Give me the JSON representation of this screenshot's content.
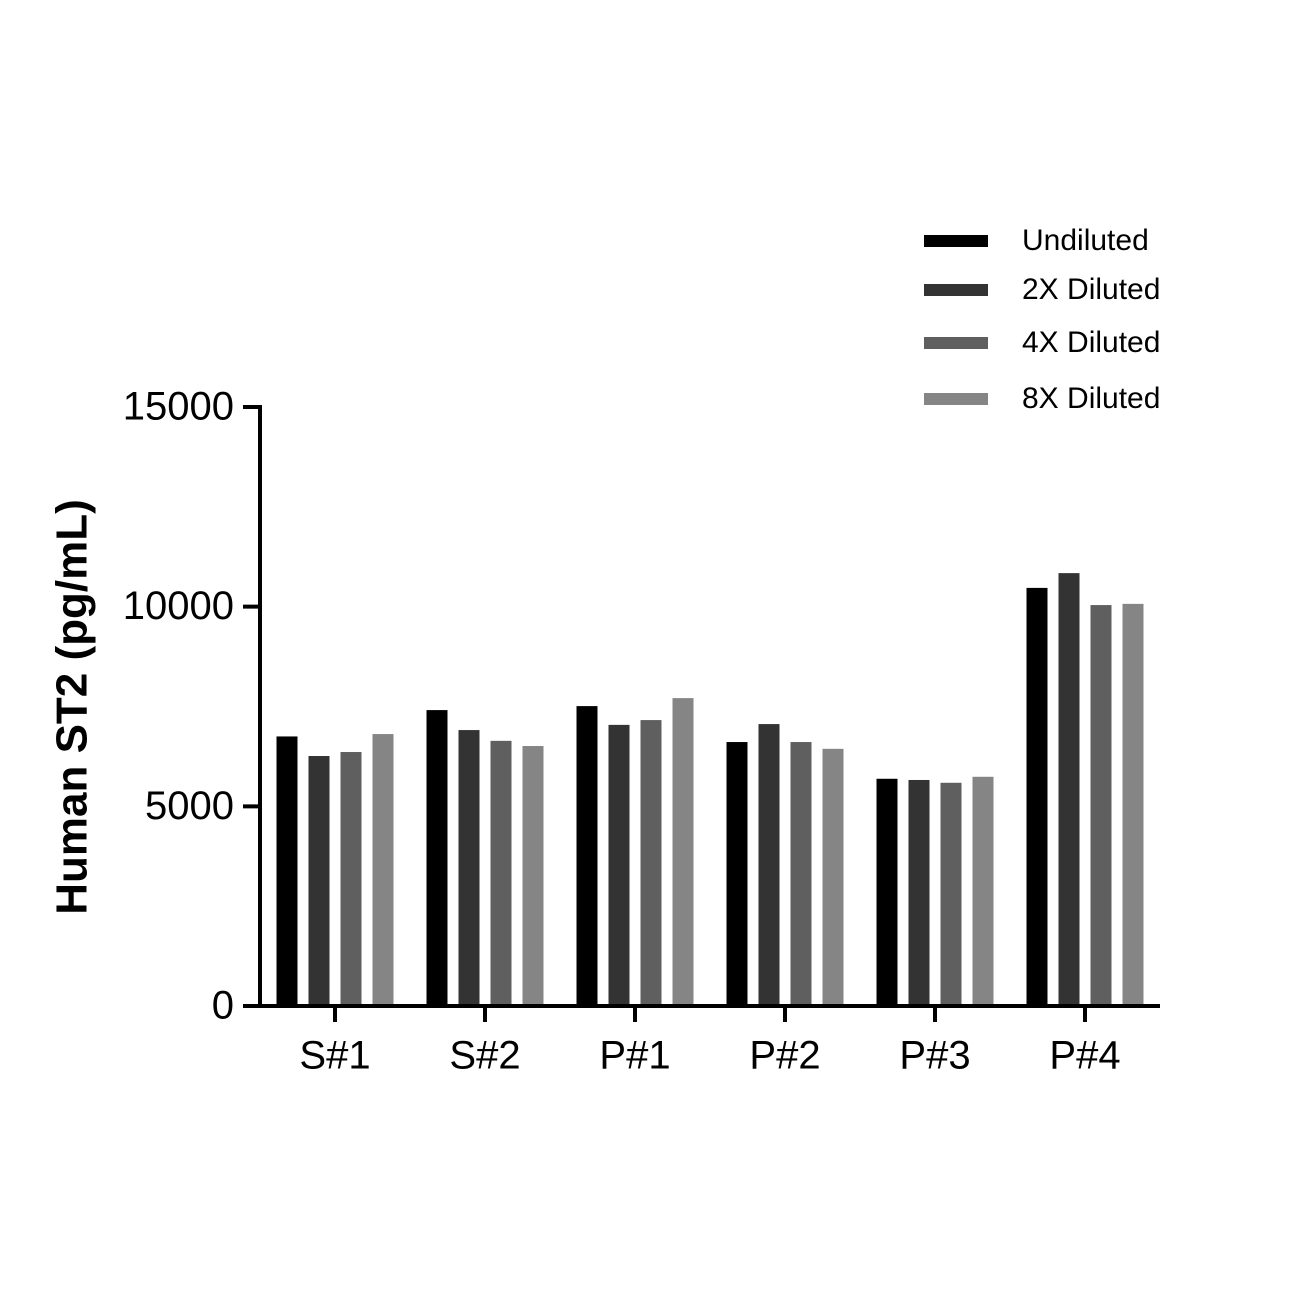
{
  "chart_data": {
    "type": "bar",
    "y_label": "Human ST2 (pg/mL)",
    "categories": [
      "S#1",
      "S#2",
      "P#1",
      "P#2",
      "P#3",
      "P#4"
    ],
    "series": [
      {
        "name": "Undiluted",
        "color": "#000000",
        "values": [
          6750,
          7410,
          7510,
          6610,
          5690,
          10470
        ]
      },
      {
        "name": "2X Diluted",
        "color": "#333333",
        "values": [
          6260,
          6910,
          7040,
          7060,
          5660,
          10840
        ]
      },
      {
        "name": "4X Diluted",
        "color": "#5f5f5f",
        "values": [
          6360,
          6640,
          7160,
          6610,
          5590,
          10040
        ]
      },
      {
        "name": "8X Diluted",
        "color": "#858585",
        "values": [
          6810,
          6510,
          7710,
          6440,
          5740,
          10070
        ]
      }
    ],
    "ylim": [
      0,
      15000
    ],
    "yticks": [
      0,
      5000,
      10000,
      15000
    ],
    "legend": "top-right"
  }
}
